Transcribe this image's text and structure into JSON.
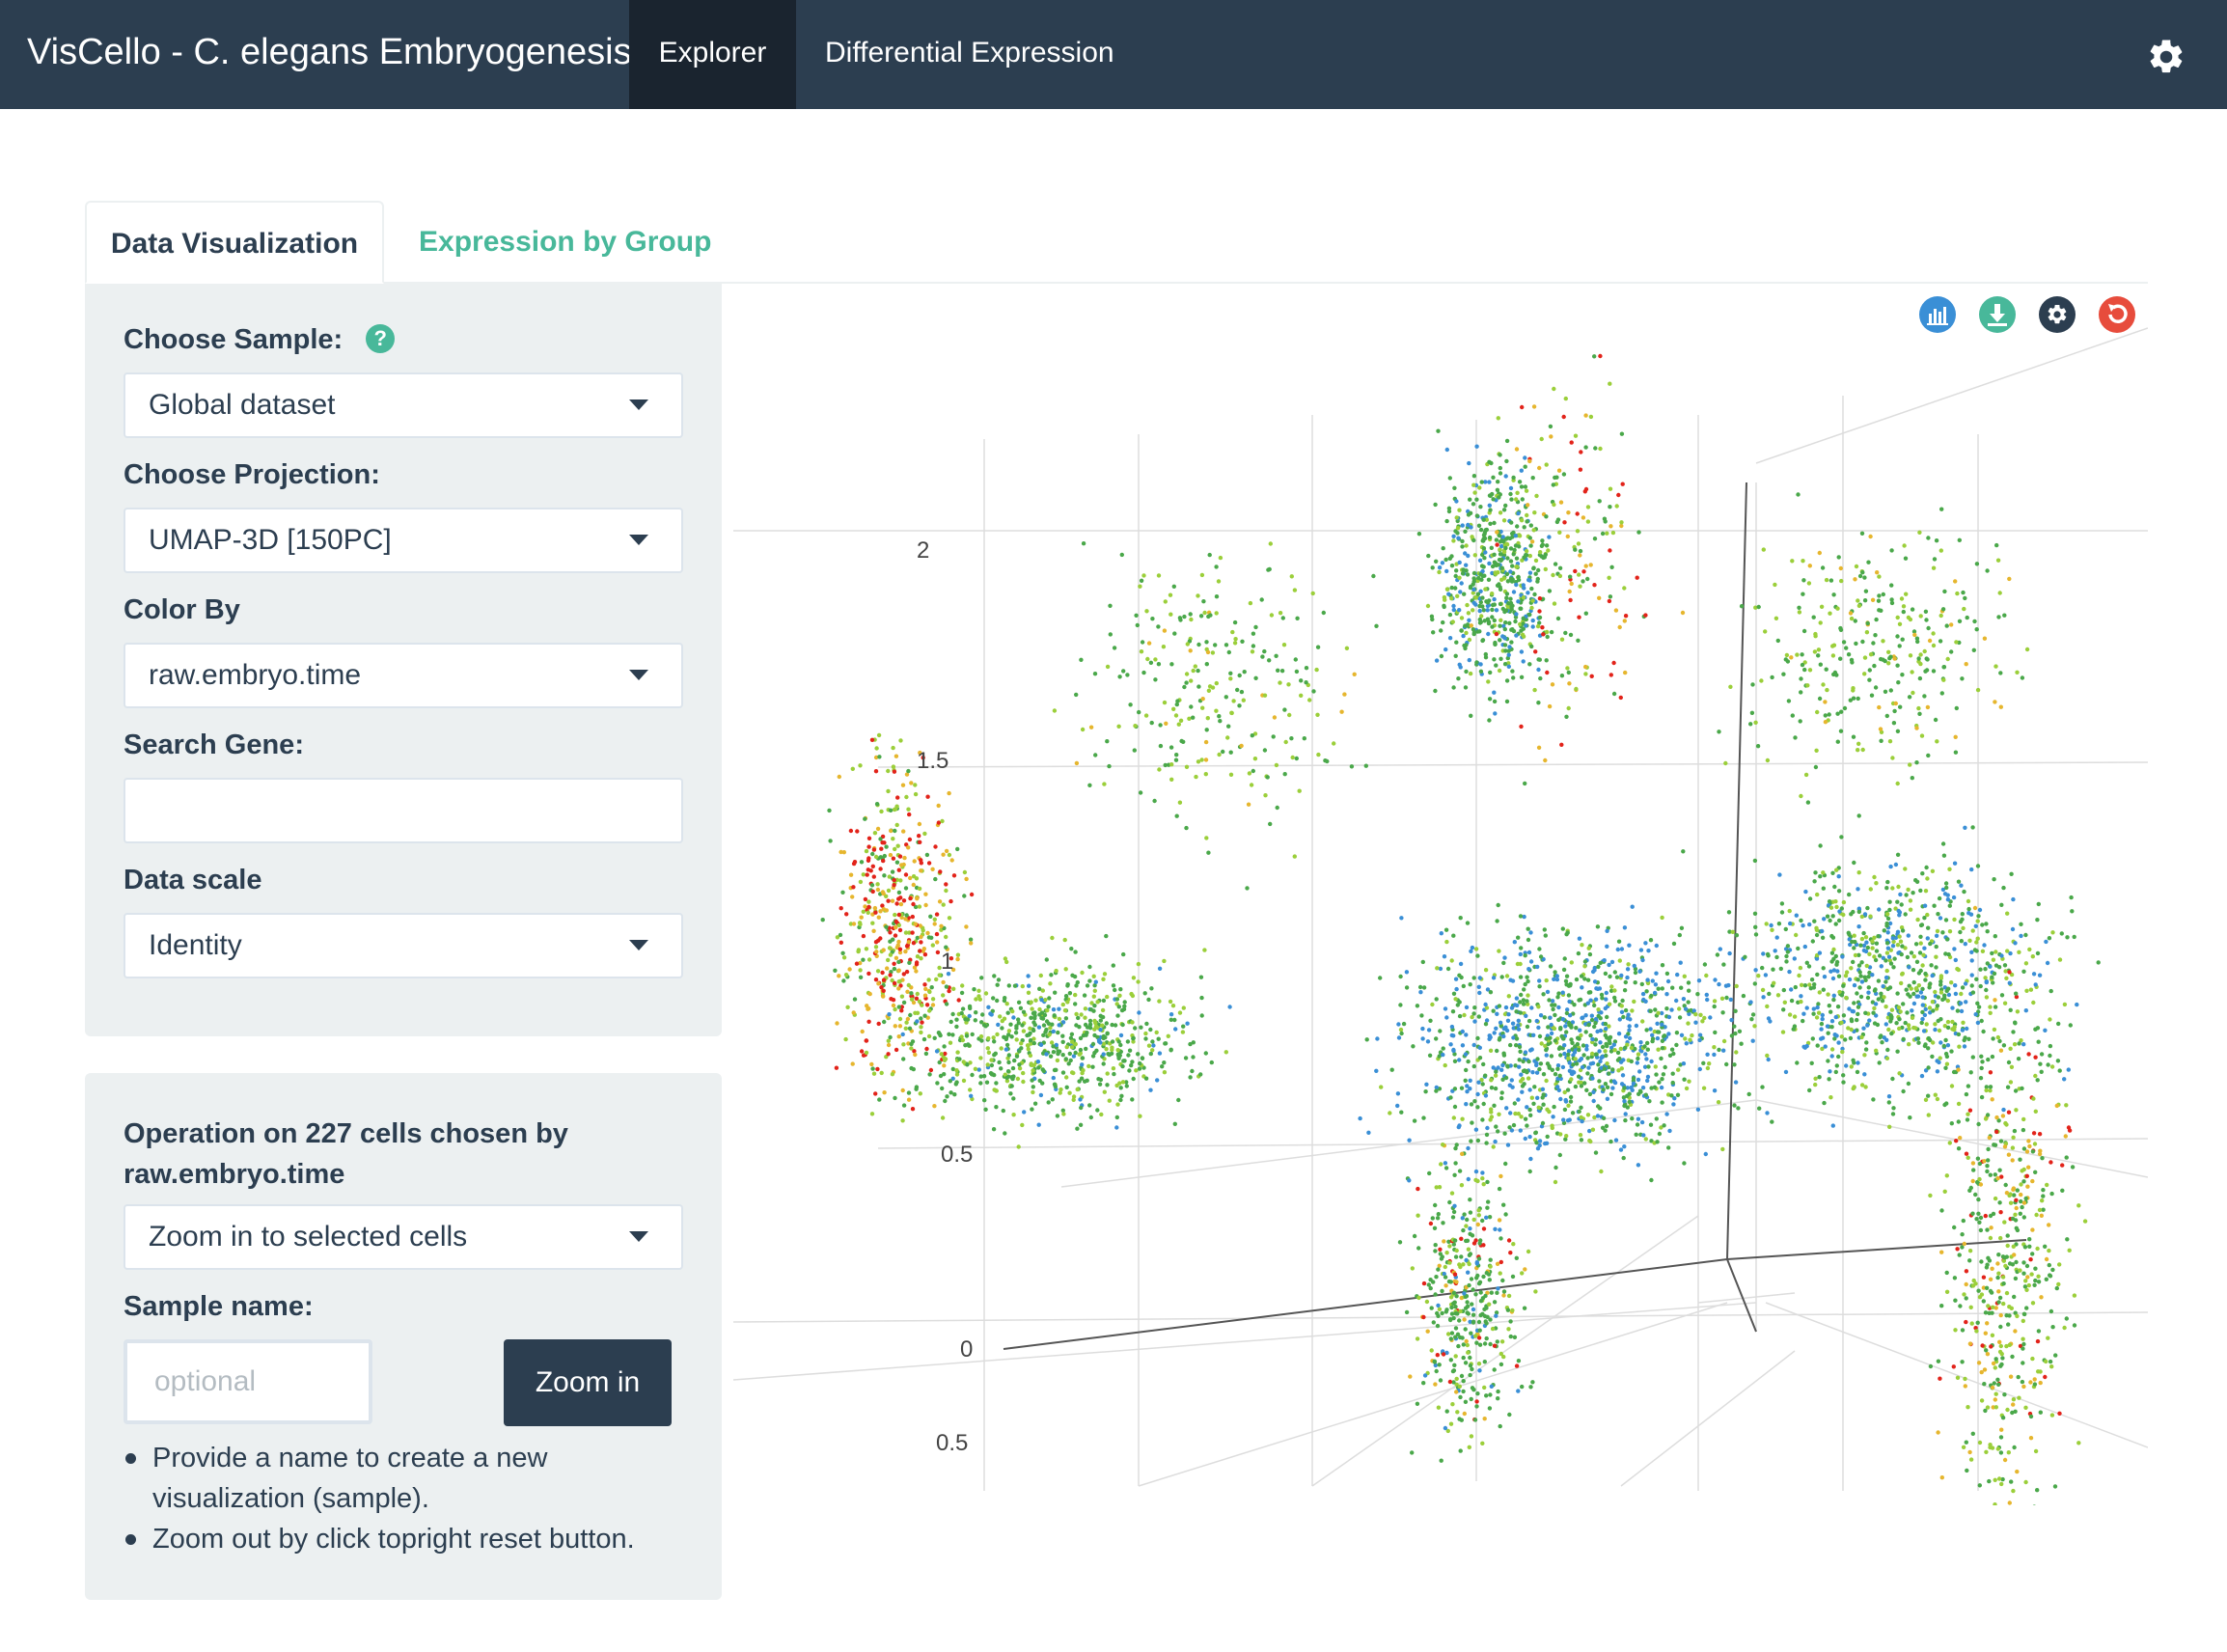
{
  "navbar": {
    "brand": "VisCello - C. elegans Embryogenesis",
    "items": [
      {
        "label": "Explorer",
        "active": true
      },
      {
        "label": "Differential Expression",
        "active": false
      }
    ],
    "settings_icon": "gear-icon"
  },
  "tabs": [
    {
      "label": "Data Visualization",
      "active": true
    },
    {
      "label": "Expression by Group",
      "active": false
    }
  ],
  "controls": {
    "choose_sample": {
      "label": "Choose Sample:",
      "value": "Global dataset",
      "help_icon": "question-circle-icon"
    },
    "choose_projection": {
      "label": "Choose Projection:",
      "value": "UMAP-3D [150PC]"
    },
    "color_by": {
      "label": "Color By",
      "value": "raw.embryo.time"
    },
    "search_gene": {
      "label": "Search Gene:",
      "value": ""
    },
    "data_scale": {
      "label": "Data scale",
      "value": "Identity"
    }
  },
  "operation": {
    "title": "Operation on 227 cells chosen by raw.embryo.time",
    "action_value": "Zoom in to selected cells",
    "sample_name_label": "Sample name:",
    "sample_name_placeholder": "optional",
    "zoom_button": "Zoom in",
    "notes": [
      "Provide a name to create a new visualization (sample).",
      "Zoom out by click topright reset button."
    ]
  },
  "plot_toolbar": [
    {
      "icon": "bar-chart-icon",
      "color": "#3a8fd6"
    },
    {
      "icon": "download-icon",
      "color": "#48b89a"
    },
    {
      "icon": "gear-icon",
      "color": "#2c3e50"
    },
    {
      "icon": "reset-icon",
      "color": "#e74c3c"
    }
  ],
  "chart_data": {
    "type": "scatter",
    "title": "",
    "xlabel": "",
    "ylabel": "",
    "z_ticks": [
      "2",
      "1.5",
      "1",
      "0.5",
      "0"
    ],
    "extra_ticks": [
      "0.5"
    ],
    "color_scale": [
      "#1f2d86",
      "#3a8fd6",
      "#4aa84a",
      "#9bcf3a",
      "#e6b62e",
      "#e2231a"
    ],
    "grid": true,
    "legend": "none"
  }
}
